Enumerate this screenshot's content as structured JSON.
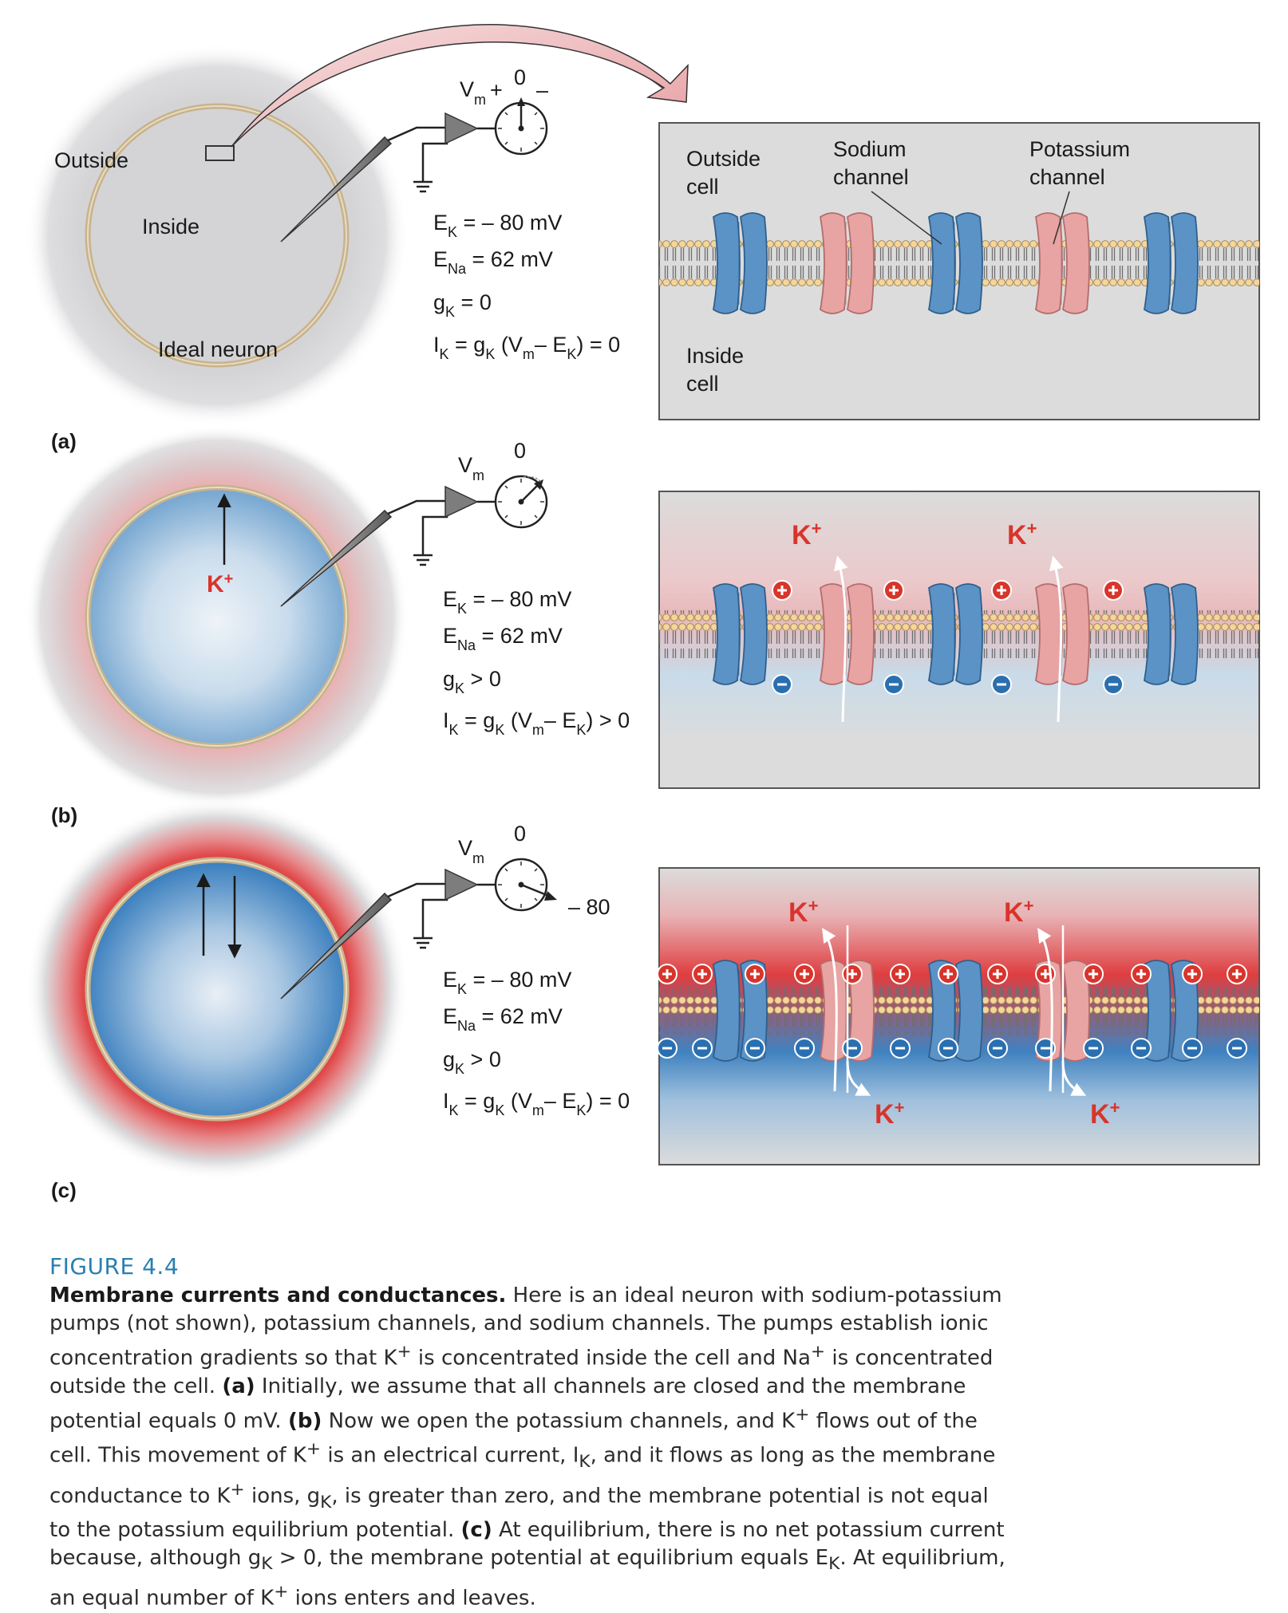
{
  "panels": {
    "a": {
      "letter": "(a)",
      "outside_label": "Outside",
      "inside_label": "Inside",
      "neuron_label": "Ideal neuron",
      "meter_zero": "0",
      "meter_plus": "+",
      "meter_minus": "–",
      "vm_main": "V",
      "vm_sub": "m",
      "eq1_main": "E",
      "eq1_sub": "K",
      "eq1_rest": " = – 80 mV",
      "eq2_main": "E",
      "eq2_sub": "Na",
      "eq2_rest": " = 62 mV",
      "eq3_main": "g",
      "eq3_sub": "K",
      "eq3_rest": " = 0",
      "eq4_text": "I_K = g_K (V_m– E_K) = 0",
      "eq4_tail": " = 0",
      "box": {
        "outside_line1": "Outside",
        "outside_line2": "cell",
        "inside_line1": "Inside",
        "inside_line2": "cell",
        "sodium_line1": "Sodium",
        "sodium_line2": "channel",
        "potassium_line1": "Potassium",
        "potassium_line2": "channel"
      }
    },
    "b": {
      "letter": "(b)",
      "meter_zero": "0",
      "k_ion": "K+",
      "eq1_rest": " = – 80 mV",
      "eq2_rest": " = 62 mV",
      "eq3_rest": " > 0",
      "eq4_tail": " > 0"
    },
    "c": {
      "letter": "(c)",
      "meter_zero": "0",
      "meter_value": "– 80",
      "eq1_rest": " = – 80 mV",
      "eq2_rest": " = 62 mV",
      "eq3_rest": " > 0",
      "eq4_tail": " = 0"
    }
  },
  "colors": {
    "sodium_channel": "#5b93c7",
    "potassium_channel": "#e8a3a3",
    "positive_charge": "#d9342b",
    "negative_charge": "#2a6fb0",
    "figure_number": "#2a7fb0"
  },
  "caption": {
    "figure_number": "FIGURE 4.4",
    "title": "Membrane currents and conductances.",
    "s1": " Here is an ideal neuron with sodium-potassium pumps (not shown), potassium channels, and sodium channels. The pumps establish ionic concentration gradients so that K",
    "s2": " is concentrated inside the cell and Na",
    "s3": " is concentrated outside the cell. ",
    "a_label": "(a)",
    "s4": " Initially, we assume that all channels are closed and the membrane potential equals 0 mV. ",
    "b_label": "(b)",
    "s5": " Now we open the potassium channels, and K",
    "s6": " flows out of the cell. This movement of K",
    "s7": " is an electrical current, I",
    "s8": ", and it flows as long as the membrane conductance to K",
    "s9": " ions, g",
    "s10": ", is greater than zero, and the membrane potential is not equal to the potassium equilibrium potential. ",
    "c_label": "(c)",
    "s11": " At equilibrium, there is no net potassium current because, although g",
    "s12": " > 0, the membrane potential at equilibrium equals E",
    "s13": ". At equilibrium, an equal number of K",
    "s14": " ions enters and leaves.",
    "sup_plus": "+",
    "sub_k": "K"
  }
}
